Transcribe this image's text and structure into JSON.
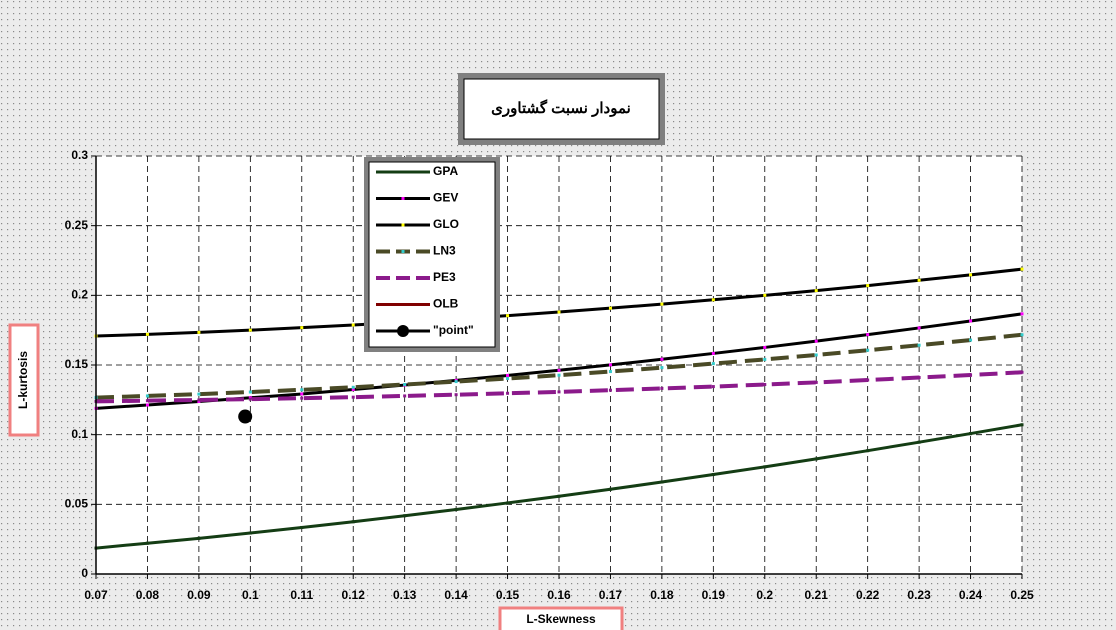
{
  "chart_data": {
    "type": "line",
    "title": "نمودار نسبت گشتاوری",
    "x_label": "L-Skewness",
    "y_label": "L-kurtosis",
    "x": [
      0.07,
      0.08,
      0.09,
      0.1,
      0.11,
      0.12,
      0.13,
      0.14,
      0.15,
      0.16,
      0.17,
      0.18,
      0.19,
      0.2,
      0.21,
      0.22,
      0.23,
      0.24,
      0.25
    ],
    "series": [
      {
        "name": "GPA",
        "color": "#143d14",
        "dash": false,
        "marker_color": "#143d14",
        "values": [
          0.0186,
          0.0221,
          0.0256,
          0.0294,
          0.0334,
          0.0375,
          0.0418,
          0.0463,
          0.051,
          0.0558,
          0.0608,
          0.066,
          0.0714,
          0.0769,
          0.0826,
          0.0885,
          0.0946,
          0.1008,
          0.1071
        ]
      },
      {
        "name": "GEV",
        "color": "#000000",
        "dash": false,
        "marker_color": "#ff00ff",
        "values": [
          0.1189,
          0.1213,
          0.1238,
          0.1265,
          0.1292,
          0.1324,
          0.1356,
          0.139,
          0.1425,
          0.1462,
          0.1501,
          0.1541,
          0.1583,
          0.1626,
          0.1671,
          0.1718,
          0.1766,
          0.1816,
          0.1867
        ]
      },
      {
        "name": "GLO",
        "color": "#000000",
        "dash": false,
        "marker_color": "#ffff00",
        "values": [
          0.1708,
          0.172,
          0.1734,
          0.175,
          0.1768,
          0.1787,
          0.1808,
          0.183,
          0.1854,
          0.188,
          0.1908,
          0.1937,
          0.1968,
          0.2,
          0.2034,
          0.207,
          0.2108,
          0.2147,
          0.2188
        ]
      },
      {
        "name": "LN3",
        "color": "#4a4a26",
        "dash": true,
        "marker_color": "#33cccc",
        "values": [
          0.1266,
          0.1278,
          0.1291,
          0.1306,
          0.1322,
          0.134,
          0.136,
          0.1381,
          0.1403,
          0.1427,
          0.1453,
          0.1481,
          0.151,
          0.154,
          0.1572,
          0.1606,
          0.1642,
          0.1679,
          0.1717
        ]
      },
      {
        "name": "PE3",
        "color": "#8b1a8b",
        "dash": true,
        "marker_color": "#8b1a8b",
        "values": [
          0.1239,
          0.1244,
          0.1249,
          0.1255,
          0.1262,
          0.1269,
          0.1278,
          0.1287,
          0.1297,
          0.1307,
          0.1319,
          0.1332,
          0.1345,
          0.136,
          0.1375,
          0.1392,
          0.141,
          0.1428,
          0.1448
        ]
      },
      {
        "name": "OLB",
        "color": "#800000",
        "dash": false,
        "marker_color": "#800000",
        "values": [
          null,
          null,
          null,
          null,
          null,
          null,
          null,
          null,
          null,
          null,
          null,
          null,
          null,
          null,
          null,
          null,
          null,
          null,
          null
        ]
      }
    ],
    "point": {
      "name": "\"point\"",
      "color": "#000000",
      "x": 0.099,
      "y": 0.113
    },
    "xlim": [
      0.07,
      0.25
    ],
    "ylim": [
      0,
      0.3
    ],
    "xticks": [
      0.07,
      0.08,
      0.09,
      0.1,
      0.11,
      0.12,
      0.13,
      0.14,
      0.15,
      0.16,
      0.17,
      0.18,
      0.19,
      0.2,
      0.21,
      0.22,
      0.23,
      0.24,
      0.25
    ],
    "yticks": [
      0,
      0.05,
      0.1,
      0.15,
      0.2,
      0.25,
      0.3
    ],
    "grid": true
  }
}
